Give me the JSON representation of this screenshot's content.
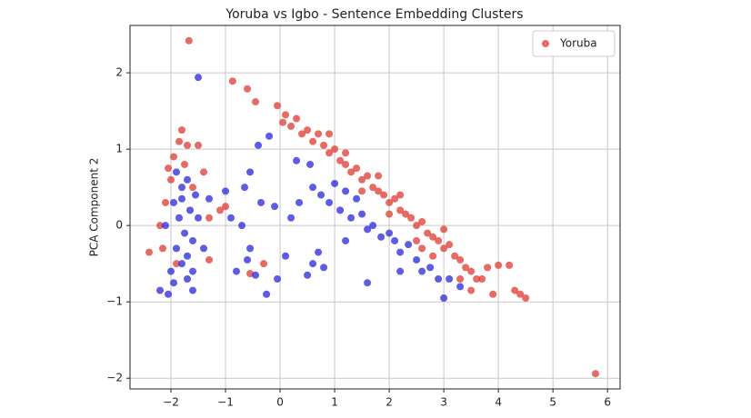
{
  "chart_data": {
    "type": "scatter",
    "title": "Yoruba vs Igbo - Sentence Embedding Clusters",
    "ylabel": "PCA Component 2",
    "xlim": [
      -2.75,
      6.23
    ],
    "ylim": [
      -2.14,
      2.62
    ],
    "xticks": [
      {
        "value": -2,
        "label": "−2"
      },
      {
        "value": -1,
        "label": "−1"
      },
      0,
      1,
      2,
      3,
      4,
      5,
      6
    ],
    "yticks": [
      {
        "value": -2,
        "label": "−2"
      },
      {
        "value": -1,
        "label": "−1"
      },
      0,
      1,
      2
    ],
    "grid": true,
    "legend": "upper right",
    "series": [
      {
        "name": "Yoruba",
        "color": "#e2372f",
        "x": [
          -1.95,
          -1.85,
          -1.8,
          -1.7,
          -2.0,
          -2.1,
          -2.2,
          -2.15,
          -2.4,
          -1.9,
          -1.75,
          -1.6,
          -2.05,
          -1.5,
          -1.3,
          -1.1,
          -1.3,
          -0.55,
          -1.0,
          -1.4,
          -1.67,
          -0.87,
          -0.6,
          -0.45,
          -0.05,
          0.05,
          5.78,
          4.5,
          4.4,
          4.2,
          4.0,
          3.9,
          3.7,
          3.8,
          4.3,
          -0.3,
          0.1,
          0.2,
          0.3,
          0.4,
          0.5,
          0.6,
          0.7,
          0.8,
          0.9,
          1.0,
          1.1,
          1.2,
          1.3,
          1.4,
          1.5,
          1.6,
          1.7,
          1.8,
          1.9,
          2.0,
          2.1,
          2.2,
          2.3,
          2.4,
          2.5,
          2.6,
          2.7,
          2.8,
          2.9,
          3.0,
          3.1,
          3.2,
          3.3,
          3.4,
          3.5,
          3.6,
          0.9,
          1.5,
          2.0,
          2.5,
          3.0,
          2.2,
          1.2,
          2.8,
          3.3,
          1.8,
          2.6,
          3.5
        ],
        "values": [
          0.9,
          1.1,
          1.25,
          1.05,
          0.6,
          0.3,
          0.0,
          -0.3,
          -0.35,
          -0.5,
          0.8,
          0.5,
          0.75,
          1.05,
          0.1,
          0.2,
          -0.45,
          -0.63,
          0.25,
          0.7,
          2.42,
          1.89,
          1.79,
          1.62,
          1.57,
          1.35,
          -1.94,
          -0.95,
          -0.9,
          -0.52,
          -0.52,
          -0.9,
          -0.7,
          -0.55,
          -0.85,
          -0.5,
          1.45,
          1.3,
          1.4,
          1.2,
          1.25,
          1.1,
          1.2,
          1.05,
          0.95,
          1.0,
          0.85,
          0.8,
          0.7,
          0.75,
          0.6,
          0.65,
          0.5,
          0.45,
          0.4,
          0.3,
          0.35,
          0.2,
          0.15,
          0.1,
          0.0,
          0.05,
          -0.1,
          -0.15,
          -0.2,
          -0.3,
          -0.25,
          -0.4,
          -0.45,
          -0.55,
          -0.6,
          -0.7,
          1.2,
          0.45,
          0.15,
          -0.2,
          -0.05,
          0.4,
          0.95,
          -0.4,
          -0.7,
          0.65,
          -0.3,
          -0.85
        ]
      },
      {
        "color": "#2626e0",
        "x": [
          -1.9,
          -1.8,
          -1.7,
          -1.95,
          -1.85,
          -1.75,
          -1.9,
          -1.8,
          -1.7,
          -2.0,
          -2.2,
          -2.05,
          -1.65,
          -1.6,
          -1.55,
          -2.1,
          -1.7,
          -1.6,
          -1.5,
          -1.95,
          -1.8,
          -1.6,
          -1.4,
          -1.3,
          -1.5,
          -0.4,
          -0.2,
          -0.55,
          -1.0,
          -0.9,
          -0.65,
          -0.35,
          -0.1,
          -0.7,
          -0.55,
          -0.8,
          -0.6,
          -0.25,
          -0.45,
          -0.05,
          0.1,
          0.2,
          0.3,
          0.35,
          0.55,
          0.5,
          0.7,
          0.8,
          0.6,
          0.6,
          0.75,
          0.9,
          1.0,
          1.1,
          1.2,
          1.3,
          1.4,
          1.5,
          1.6,
          1.7,
          1.85,
          2.0,
          2.1,
          2.2,
          2.35,
          2.5,
          2.6,
          2.75,
          2.9,
          3.0,
          3.1,
          3.3,
          1.6,
          2.2,
          1.2
        ],
        "values": [
          0.7,
          0.5,
          0.6,
          0.3,
          0.1,
          -0.1,
          -0.3,
          -0.5,
          -0.7,
          -0.6,
          -0.85,
          -0.9,
          0.2,
          -0.2,
          0.4,
          0.0,
          -0.4,
          -0.6,
          0.1,
          -0.75,
          0.35,
          -0.85,
          -0.3,
          0.35,
          1.94,
          1.05,
          1.17,
          0.7,
          0.45,
          0.1,
          0.5,
          0.3,
          0.25,
          0.0,
          -0.3,
          -0.6,
          -0.45,
          -0.9,
          -0.65,
          -0.7,
          -0.4,
          0.1,
          0.85,
          0.3,
          0.8,
          -0.65,
          -0.35,
          -0.55,
          -0.5,
          0.5,
          0.4,
          0.3,
          0.55,
          0.2,
          0.45,
          0.1,
          0.35,
          0.15,
          -0.05,
          0.0,
          -0.15,
          -0.1,
          -0.2,
          -0.35,
          -0.25,
          -0.45,
          -0.6,
          -0.55,
          -0.7,
          -0.95,
          -0.7,
          -0.8,
          -0.75,
          -0.6,
          -0.2
        ]
      }
    ]
  }
}
